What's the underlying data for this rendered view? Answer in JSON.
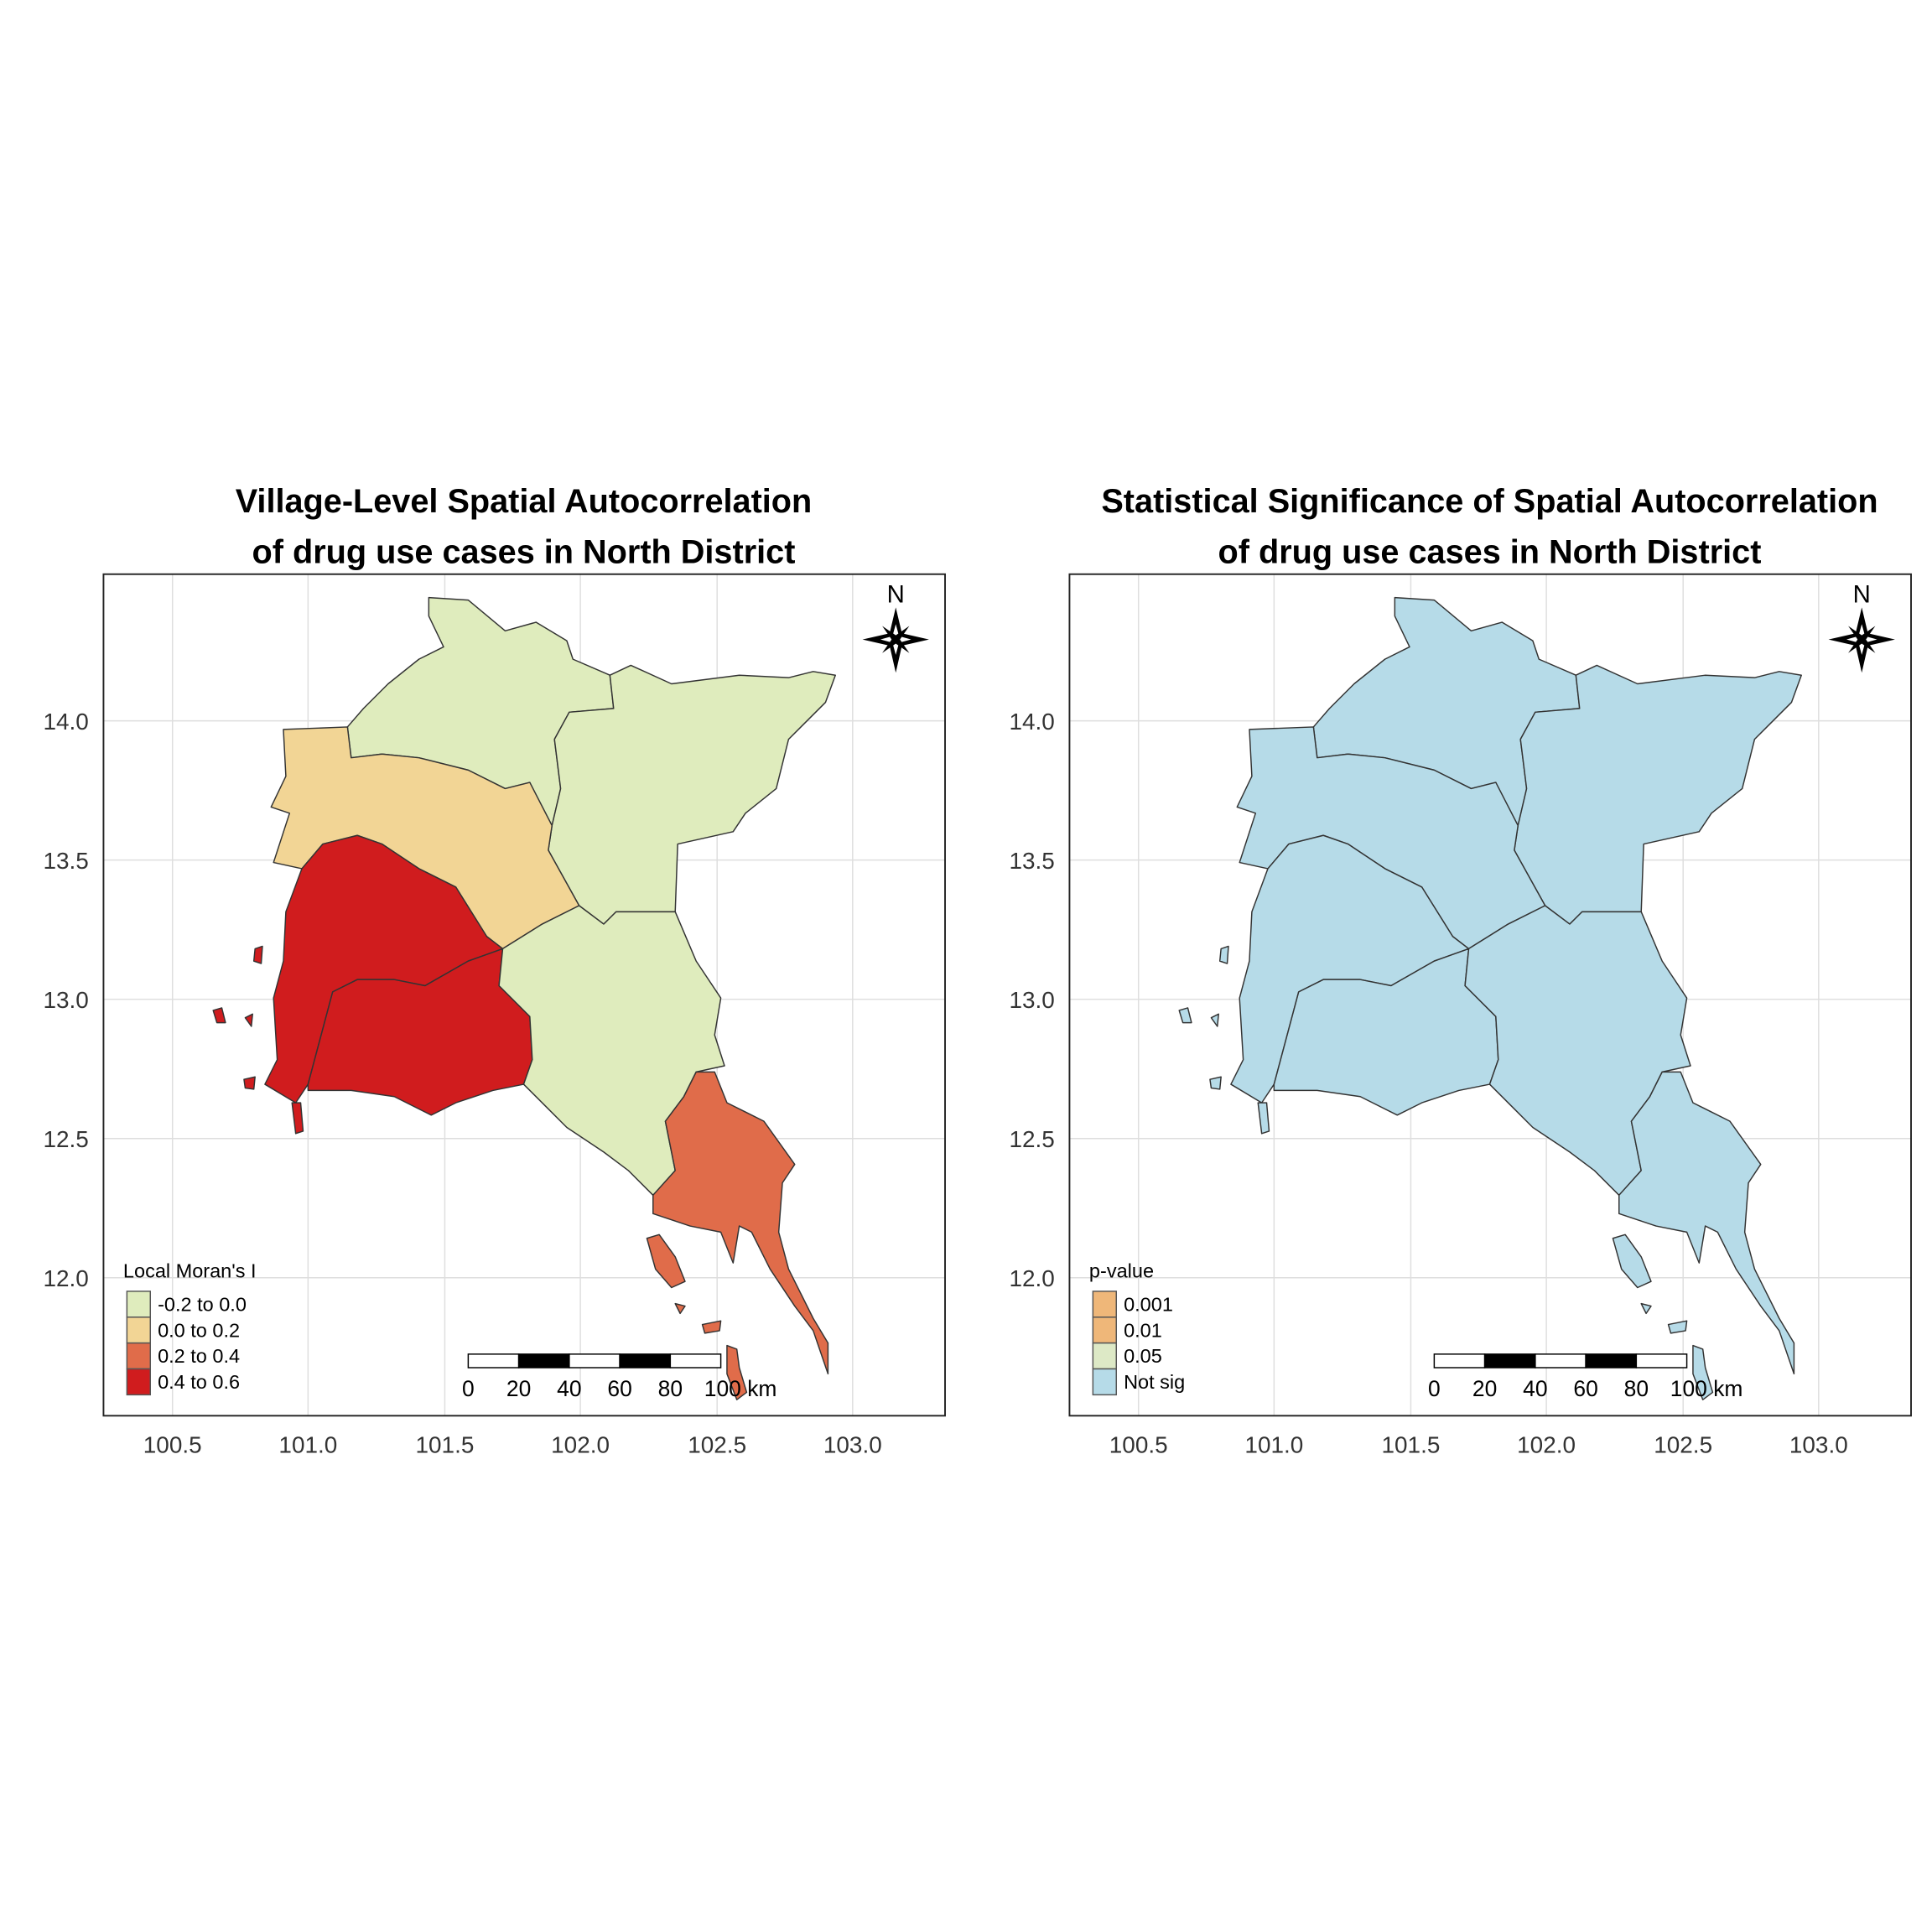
{
  "colors": {
    "moran": {
      "-0.2 to 0.0": "#dfecbd",
      "0.0 to 0.2": "#f2d595",
      "0.2 to 0.4": "#e06c4a",
      "0.4 to 0.6": "#d01c1e"
    },
    "pvalue": {
      "0.001": "#efb779",
      "0.01": "#efb779",
      "0.05": "#dde9c6",
      "Not sig": "#b6dbe8"
    }
  },
  "panels": [
    {
      "title_line1": "Village-Level Spatial Autocorrelation",
      "title_line2": "of drug use cases in North District",
      "legend_title": "Local Moran's I",
      "legend_items": [
        "-0.2 to 0.0",
        "0.0 to 0.2",
        "0.2 to 0.4",
        "0.4 to 0.6"
      ],
      "variable": "moran"
    },
    {
      "title_line1": "Statistical Significance of Spatial Autocorrelation",
      "title_line2": "of drug use cases in North District",
      "legend_title": "p-value",
      "legend_items": [
        "0.001",
        "0.01",
        "0.05",
        "Not sig"
      ],
      "variable": "pvalue"
    }
  ],
  "map_data": {
    "x_ticks": [
      "100.5",
      "101.0",
      "101.5",
      "102.0",
      "102.5",
      "103.0"
    ],
    "y_ticks": [
      "14.0",
      "13.5",
      "13.0",
      "12.5",
      "12.0"
    ],
    "grid": true,
    "north_arrow_label": "N",
    "scale_bar_labels": [
      "0",
      "20",
      "40",
      "60",
      "80",
      "100 km"
    ],
    "regions": [
      {
        "moran": "-0.2 to 0.0",
        "pvalue": "Not sig"
      },
      {
        "moran": "-0.2 to 0.0",
        "pvalue": "Not sig"
      },
      {
        "moran": "0.0 to 0.2",
        "pvalue": "Not sig"
      },
      {
        "moran": "0.4 to 0.6",
        "pvalue": "Not sig"
      },
      {
        "moran": "0.4 to 0.6",
        "pvalue": "Not sig"
      },
      {
        "moran": "-0.2 to 0.0",
        "pvalue": "Not sig"
      },
      {
        "moran": "0.2 to 0.4",
        "pvalue": "Not sig"
      }
    ]
  }
}
